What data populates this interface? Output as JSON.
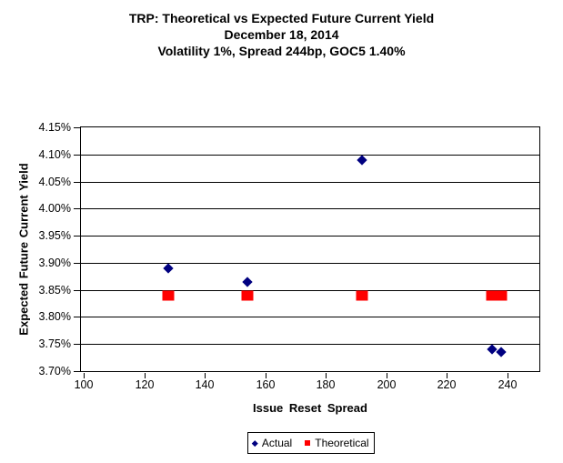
{
  "title": {
    "line1": "TRP: Theoretical vs Expected Future Current Yield",
    "line2": "December 18, 2014",
    "line3": "Volatility 1%, Spread 244bp, GOC5 1.40%"
  },
  "chart_data": {
    "type": "scatter",
    "title": "TRP: Theoretical vs Expected Future Current Yield — December 18, 2014 — Volatility 1%, Spread 244bp, GOC5 1.40%",
    "xlabel": "Issue Reset Spread",
    "ylabel": "Expected Future Current Yield",
    "xlim": [
      99,
      250.6
    ],
    "ylim": [
      3.7,
      4.15
    ],
    "xticks": [
      100,
      120,
      140,
      160,
      180,
      200,
      220,
      240
    ],
    "yticks": [
      3.7,
      3.75,
      3.8,
      3.85,
      3.9,
      3.95,
      4.0,
      4.05,
      4.1,
      4.15
    ],
    "y_tick_format": "percent_2dp",
    "grid": true,
    "legend_position": "bottom",
    "series": [
      {
        "name": "Actual",
        "marker": "diamond",
        "color": "#000080",
        "points": [
          [
            128,
            3.89
          ],
          [
            154,
            3.865
          ],
          [
            192,
            4.09
          ],
          [
            235,
            3.74
          ],
          [
            238,
            3.735
          ]
        ]
      },
      {
        "name": "Theoretical",
        "marker": "square",
        "color": "#FF0000",
        "points": [
          [
            128,
            3.84
          ],
          [
            154,
            3.84
          ],
          [
            192,
            3.84
          ],
          [
            235,
            3.84
          ],
          [
            238,
            3.84
          ]
        ]
      }
    ]
  },
  "colors": {
    "actual": "#000080",
    "theoretical": "#FF0000",
    "axis": "#000000",
    "background": "#FFFFFF"
  }
}
